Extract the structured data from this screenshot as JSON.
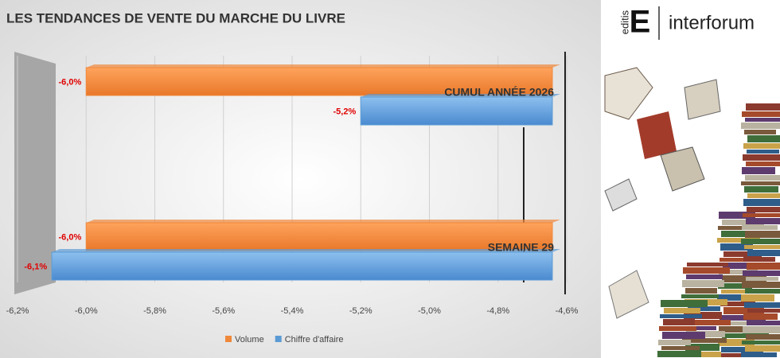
{
  "chart_data": {
    "type": "bar",
    "orientation": "horizontal",
    "title": "LES TENDANCES DE VENTE DU MARCHE DU LIVRE",
    "categories": [
      "CUMUL ANNÉE 2026",
      "SEMAINE 29"
    ],
    "series": [
      {
        "name": "Volume",
        "color": "#f0883a",
        "values": [
          -6.0,
          -6.0
        ],
        "value_labels": [
          "-6,0%",
          "-6,0%"
        ]
      },
      {
        "name": "Chiffre d'affaire",
        "color": "#5b9bd5",
        "values": [
          -5.2,
          -6.1
        ],
        "value_labels": [
          "-5,2%",
          "-6,1%"
        ]
      }
    ],
    "xlim": [
      -6.2,
      -4.6
    ],
    "xticks": [
      {
        "value": -6.2,
        "label": "-6,2%"
      },
      {
        "value": -6.0,
        "label": "-6,0%"
      },
      {
        "value": -5.8,
        "label": "-5,8%"
      },
      {
        "value": -5.6,
        "label": "-5,6%"
      },
      {
        "value": -5.4,
        "label": "-5,4%"
      },
      {
        "value": -5.2,
        "label": "-5,2%"
      },
      {
        "value": -5.0,
        "label": "-5,0%"
      },
      {
        "value": -4.8,
        "label": "-4,8%"
      },
      {
        "value": -4.6,
        "label": "-4,6%"
      }
    ],
    "grid": true,
    "legend": "bottom"
  },
  "logo": {
    "brand": "editis",
    "letter": "E",
    "name": "interforum"
  }
}
